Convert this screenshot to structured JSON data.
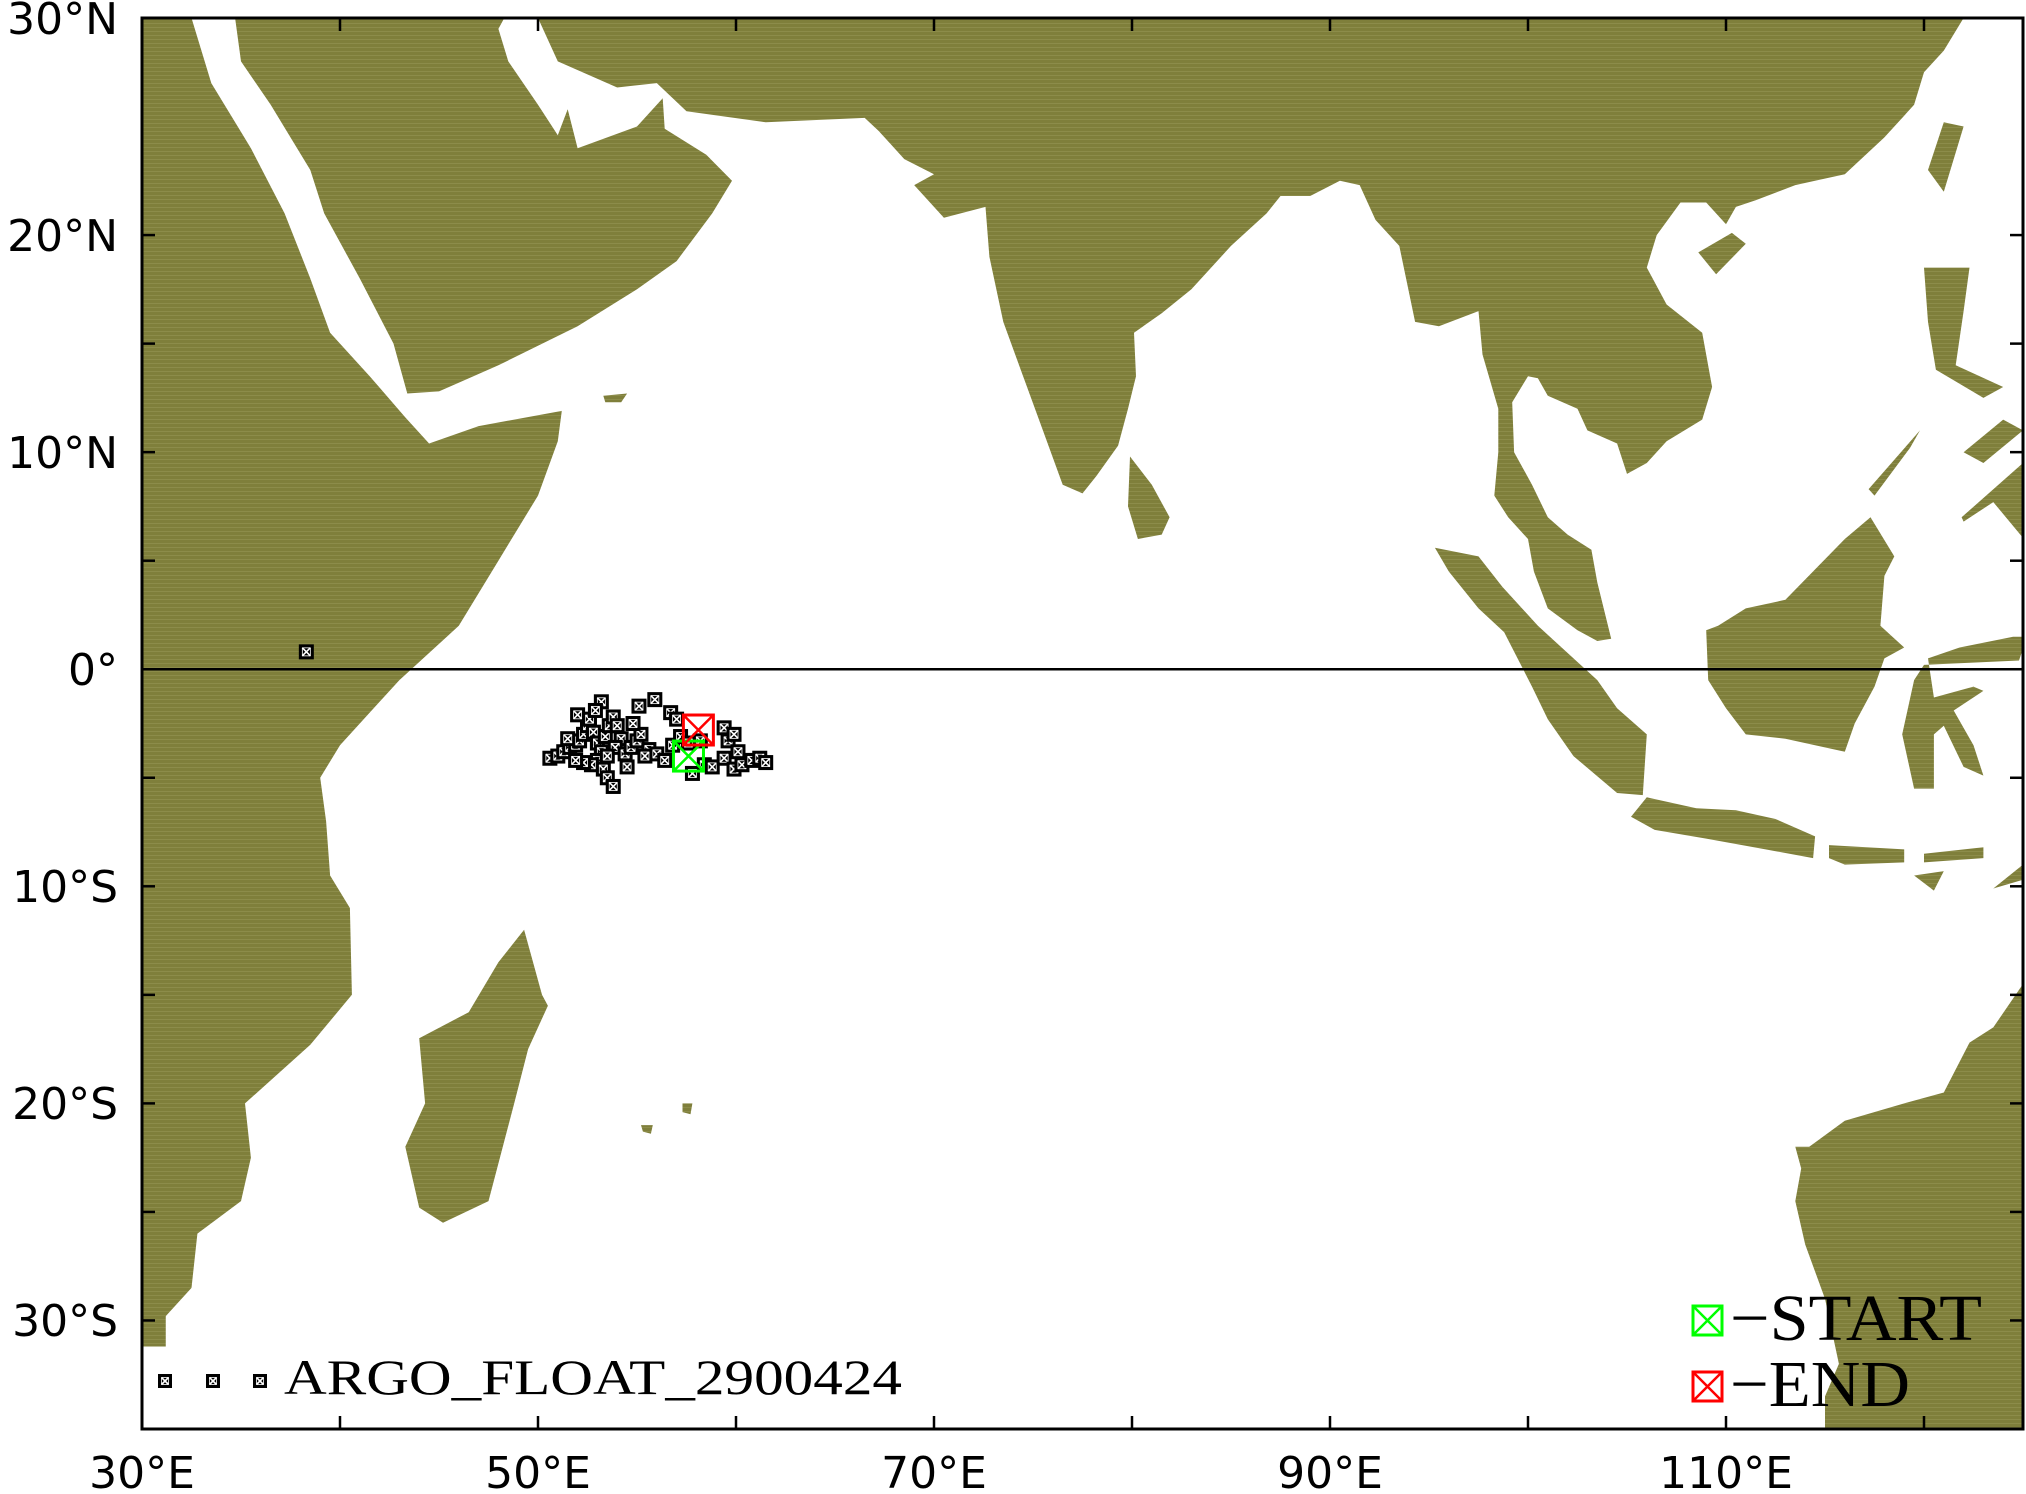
{
  "map": {
    "extent": {
      "lon": [
        30,
        125
      ],
      "lat": [
        -35,
        30
      ]
    },
    "projection": "equirectangular",
    "land_color": "#7f7f3b",
    "ocean_color": "#ffffff",
    "equator_line": true
  },
  "axes": {
    "lat_labels": [
      "30°N",
      "20°N",
      "10°N",
      "0°",
      "10°S",
      "20°S",
      "30°S"
    ],
    "lat_values": [
      30,
      20,
      10,
      0,
      -10,
      -20,
      -30
    ],
    "lon_labels": [
      "30°E",
      "50°E",
      "70°E",
      "90°E",
      "110°E"
    ],
    "lon_values": [
      30,
      50,
      70,
      90,
      110
    ]
  },
  "legend": {
    "float_label": "ARGO_FLOAT_2900424",
    "start_label": "−START",
    "end_label": "−END",
    "start_color": "#00ff00",
    "end_color": "#ff0000",
    "marker_icon": "crossed-square"
  },
  "float_track": {
    "start": [
      57.6,
      -4.0
    ],
    "end": [
      58.1,
      -2.8
    ],
    "positions": [
      [
        38.3,
        0.8
      ],
      [
        50.6,
        -4.1
      ],
      [
        51.0,
        -4.0
      ],
      [
        51.3,
        -3.8
      ],
      [
        51.6,
        -3.6
      ],
      [
        51.9,
        -3.5
      ],
      [
        52.1,
        -3.3
      ],
      [
        52.3,
        -3.0
      ],
      [
        52.5,
        -2.6
      ],
      [
        52.6,
        -2.3
      ],
      [
        52.8,
        -2.9
      ],
      [
        53.0,
        -3.4
      ],
      [
        53.2,
        -3.8
      ],
      [
        53.0,
        -4.2
      ],
      [
        52.7,
        -4.4
      ],
      [
        52.3,
        -4.3
      ],
      [
        51.9,
        -4.2
      ],
      [
        53.4,
        -3.1
      ],
      [
        53.6,
        -2.6
      ],
      [
        53.8,
        -2.2
      ],
      [
        54.0,
        -2.6
      ],
      [
        54.2,
        -3.2
      ],
      [
        53.9,
        -3.6
      ],
      [
        53.5,
        -4.0
      ],
      [
        53.3,
        -4.6
      ],
      [
        53.5,
        -5.0
      ],
      [
        53.8,
        -5.4
      ],
      [
        54.4,
        -3.9
      ],
      [
        54.7,
        -3.6
      ],
      [
        55.0,
        -3.3
      ],
      [
        55.2,
        -3.0
      ],
      [
        54.8,
        -2.5
      ],
      [
        53.2,
        -1.5
      ],
      [
        55.1,
        -1.7
      ],
      [
        55.9,
        -1.4
      ],
      [
        56.7,
        -2.0
      ],
      [
        57.0,
        -2.3
      ],
      [
        55.6,
        -3.7
      ],
      [
        56.0,
        -3.9
      ],
      [
        56.4,
        -4.2
      ],
      [
        56.8,
        -3.5
      ],
      [
        57.2,
        -3.1
      ],
      [
        57.6,
        -3.4
      ],
      [
        58.2,
        -3.3
      ],
      [
        58.4,
        -4.4
      ],
      [
        58.8,
        -4.5
      ],
      [
        59.4,
        -2.7
      ],
      [
        59.6,
        -3.3
      ],
      [
        59.9,
        -3.0
      ],
      [
        60.1,
        -3.8
      ],
      [
        59.4,
        -4.1
      ],
      [
        59.9,
        -4.6
      ],
      [
        60.3,
        -4.4
      ],
      [
        60.8,
        -4.2
      ],
      [
        61.2,
        -4.1
      ],
      [
        61.5,
        -4.3
      ],
      [
        52.0,
        -2.1
      ],
      [
        52.9,
        -1.9
      ],
      [
        51.5,
        -3.2
      ],
      [
        54.5,
        -4.5
      ],
      [
        55.4,
        -4.0
      ],
      [
        57.8,
        -4.8
      ]
    ]
  }
}
